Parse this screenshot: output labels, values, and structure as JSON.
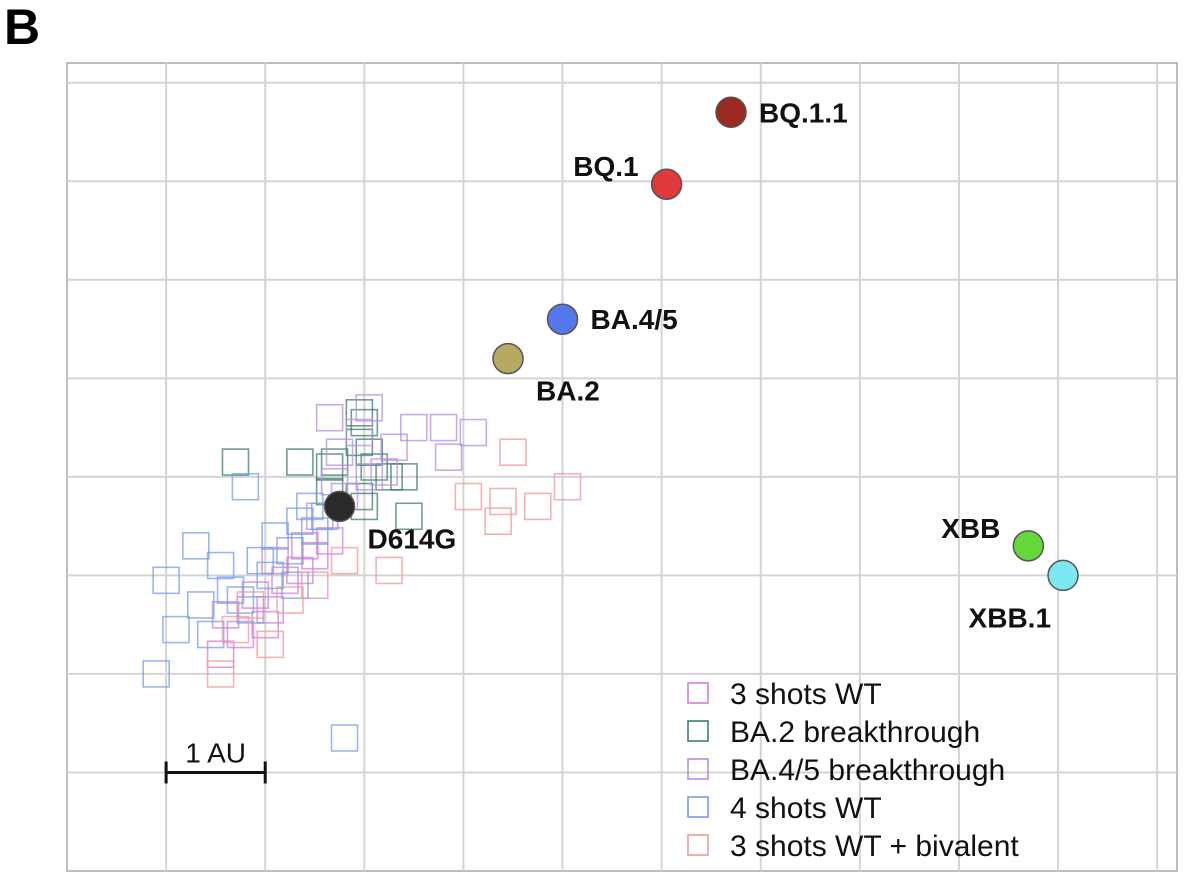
{
  "panel_letter": "B",
  "chart_data": {
    "type": "scatter",
    "title": "",
    "xlabel": "",
    "ylabel": "",
    "grid": true,
    "x_range": [
      0,
      11.2
    ],
    "y_range": [
      0,
      8.2
    ],
    "scale_bar": {
      "label": "1 AU",
      "length": 1,
      "x": 1,
      "y": 1
    },
    "antigens": [
      {
        "name": "BQ.1.1",
        "x": 6.7,
        "y": 7.7,
        "color": "#9b2a22",
        "label_pos": "right"
      },
      {
        "name": "BQ.1",
        "x": 6.05,
        "y": 6.97,
        "color": "#e0393a",
        "label_pos": "left"
      },
      {
        "name": "BA.4/5",
        "x": 5.0,
        "y": 5.6,
        "color": "#5577ee",
        "label_pos": "right"
      },
      {
        "name": "BA.2",
        "x": 4.45,
        "y": 5.2,
        "color": "#b7a862",
        "label_pos": "below-right"
      },
      {
        "name": "D614G",
        "x": 2.75,
        "y": 3.7,
        "color": "#2a2a2a",
        "label_pos": "below-right"
      },
      {
        "name": "XBB",
        "x": 9.7,
        "y": 3.3,
        "color": "#66d93a",
        "label_pos": "left"
      },
      {
        "name": "XBB.1",
        "x": 10.05,
        "y": 3.0,
        "color": "#7ce9f0",
        "label_pos": "below-left"
      }
    ],
    "series": [
      {
        "name": "3 shots WT",
        "color": "#d37dd8",
        "points": [
          [
            1.9,
            2.8
          ],
          [
            2.05,
            2.65
          ],
          [
            2.2,
            2.95
          ],
          [
            2.35,
            3.05
          ],
          [
            2.5,
            3.2
          ],
          [
            2.65,
            3.35
          ],
          [
            1.75,
            2.4
          ],
          [
            1.55,
            2.2
          ],
          [
            2.1,
            3.15
          ],
          [
            2.4,
            3.3
          ],
          [
            2.0,
            2.5
          ],
          [
            1.6,
            2.6
          ]
        ]
      },
      {
        "name": "BA.2 breakthrough",
        "color": "#3f7e70",
        "points": [
          [
            1.7,
            4.15
          ],
          [
            2.35,
            4.15
          ],
          [
            2.7,
            4.15
          ],
          [
            2.95,
            4.35
          ],
          [
            3.0,
            4.55
          ],
          [
            3.05,
            4.25
          ],
          [
            3.25,
            4.0
          ],
          [
            3.4,
            4.0
          ],
          [
            3.45,
            3.6
          ],
          [
            2.95,
            3.8
          ],
          [
            2.65,
            3.85
          ],
          [
            3.0,
            3.7
          ],
          [
            2.95,
            4.65
          ],
          [
            2.65,
            4.1
          ],
          [
            3.1,
            4.1
          ]
        ]
      },
      {
        "name": "BA.4/5 breakthrough",
        "color": "#b58ee8",
        "points": [
          [
            2.65,
            4.6
          ],
          [
            3.05,
            4.7
          ],
          [
            2.95,
            4.45
          ],
          [
            3.5,
            4.5
          ],
          [
            3.8,
            4.5
          ],
          [
            4.1,
            4.45
          ],
          [
            3.85,
            4.2
          ],
          [
            2.75,
            4.25
          ],
          [
            3.3,
            4.3
          ],
          [
            2.8,
            3.8
          ],
          [
            3.2,
            4.05
          ],
          [
            2.55,
            3.6
          ],
          [
            2.7,
            3.95
          ],
          [
            3.05,
            4.0
          ]
        ]
      },
      {
        "name": "4 shots WT",
        "color": "#7a9de8",
        "points": [
          [
            1.3,
            3.3
          ],
          [
            1.8,
            3.9
          ],
          [
            1.0,
            2.95
          ],
          [
            1.1,
            2.45
          ],
          [
            0.9,
            2.0
          ],
          [
            1.55,
            3.1
          ],
          [
            1.75,
            2.75
          ],
          [
            1.95,
            3.15
          ],
          [
            2.1,
            3.4
          ],
          [
            2.35,
            3.55
          ],
          [
            2.5,
            3.45
          ],
          [
            2.25,
            3.25
          ],
          [
            1.85,
            2.65
          ],
          [
            1.65,
            2.85
          ],
          [
            1.45,
            2.4
          ],
          [
            1.35,
            2.7
          ],
          [
            2.05,
            3.0
          ],
          [
            2.45,
            3.7
          ],
          [
            2.8,
            1.35
          ],
          [
            2.6,
            3.6
          ],
          [
            2.3,
            2.9
          ]
        ]
      },
      {
        "name": "3 shots WT + bivalent",
        "color": "#ef9a9a",
        "points": [
          [
            4.5,
            4.25
          ],
          [
            4.05,
            3.8
          ],
          [
            4.4,
            3.75
          ],
          [
            4.75,
            3.7
          ],
          [
            5.05,
            3.9
          ],
          [
            4.35,
            3.55
          ],
          [
            2.8,
            3.15
          ],
          [
            3.25,
            3.05
          ],
          [
            2.05,
            2.3
          ],
          [
            1.55,
            2.0
          ],
          [
            1.7,
            2.45
          ],
          [
            1.85,
            2.7
          ],
          [
            2.25,
            2.75
          ],
          [
            2.5,
            2.9
          ]
        ]
      }
    ]
  }
}
